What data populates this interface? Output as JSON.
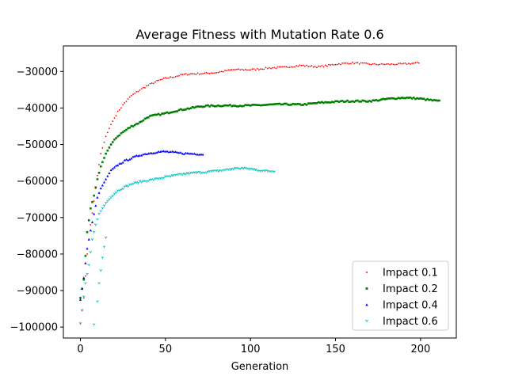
{
  "chart_data": {
    "type": "scatter",
    "title": "Average Fitness with Mutation Rate 0.6",
    "xlabel": "Generation",
    "ylabel": "",
    "xlim": [
      -10,
      221
    ],
    "ylim": [
      -103000,
      -23000
    ],
    "xticks": [
      0,
      50,
      100,
      150,
      200
    ],
    "yticks": [
      -100000,
      -90000,
      -80000,
      -70000,
      -60000,
      -50000,
      -40000,
      -30000
    ],
    "xtick_labels": [
      "0",
      "50",
      "100",
      "150",
      "200"
    ],
    "ytick_labels": [
      "−100000",
      "−90000",
      "−80000",
      "−70000",
      "−60000",
      "−50000",
      "−40000",
      "−30000"
    ],
    "grid": false,
    "legend_position": "lower-right",
    "series": [
      {
        "name": "Impact 0.1",
        "color": "#ff0000",
        "marker": "point",
        "anchors": [
          [
            0,
            -99000
          ],
          [
            2,
            -92000
          ],
          [
            4,
            -80000
          ],
          [
            6,
            -72000
          ],
          [
            8,
            -65500
          ],
          [
            10,
            -58500
          ],
          [
            12,
            -52500
          ],
          [
            15,
            -47800
          ],
          [
            18,
            -44500
          ],
          [
            22,
            -41000
          ],
          [
            26,
            -38500
          ],
          [
            30,
            -36500
          ],
          [
            35,
            -35000
          ],
          [
            40,
            -33800
          ],
          [
            45,
            -32800
          ],
          [
            50,
            -32000
          ],
          [
            55,
            -31500
          ],
          [
            60,
            -30800
          ],
          [
            65,
            -30500
          ],
          [
            70,
            -30500
          ],
          [
            80,
            -30400
          ],
          [
            90,
            -29600
          ],
          [
            100,
            -29400
          ],
          [
            110,
            -29000
          ],
          [
            120,
            -29000
          ],
          [
            130,
            -28400
          ],
          [
            140,
            -28600
          ],
          [
            150,
            -28000
          ],
          [
            160,
            -27800
          ],
          [
            170,
            -28000
          ],
          [
            180,
            -27900
          ],
          [
            190,
            -28000
          ],
          [
            200,
            -27800
          ]
        ],
        "count": 200,
        "noise": 220
      },
      {
        "name": "Impact 0.2",
        "color": "#008000",
        "marker": "square",
        "anchors": [
          [
            0,
            -92000
          ],
          [
            2,
            -87000
          ],
          [
            4,
            -74000
          ],
          [
            6,
            -67500
          ],
          [
            8,
            -64000
          ],
          [
            10,
            -59500
          ],
          [
            12,
            -56000
          ],
          [
            15,
            -52500
          ],
          [
            18,
            -50000
          ],
          [
            21,
            -48000
          ],
          [
            25,
            -46500
          ],
          [
            30,
            -45000
          ],
          [
            35,
            -44000
          ],
          [
            40,
            -42500
          ],
          [
            45,
            -42000
          ],
          [
            50,
            -41500
          ],
          [
            55,
            -40800
          ],
          [
            60,
            -40300
          ],
          [
            70,
            -39600
          ],
          [
            80,
            -39500
          ],
          [
            90,
            -39300
          ],
          [
            100,
            -39200
          ],
          [
            110,
            -39200
          ],
          [
            120,
            -39100
          ],
          [
            130,
            -39000
          ],
          [
            140,
            -38500
          ],
          [
            150,
            -38400
          ],
          [
            160,
            -38200
          ],
          [
            170,
            -38000
          ],
          [
            180,
            -37500
          ],
          [
            190,
            -37300
          ],
          [
            200,
            -37500
          ],
          [
            211,
            -38000
          ]
        ],
        "count": 212,
        "noise": 200
      },
      {
        "name": "Impact 0.4",
        "color": "#0000ff",
        "marker": "triangle",
        "anchors": [
          [
            0,
            -92500
          ],
          [
            2,
            -86500
          ],
          [
            4,
            -78500
          ],
          [
            6,
            -73500
          ],
          [
            8,
            -69000
          ],
          [
            10,
            -64500
          ],
          [
            12,
            -62000
          ],
          [
            15,
            -59500
          ],
          [
            18,
            -57000
          ],
          [
            22,
            -55500
          ],
          [
            26,
            -54500
          ],
          [
            30,
            -53800
          ],
          [
            35,
            -53000
          ],
          [
            40,
            -52500
          ],
          [
            45,
            -52000
          ],
          [
            50,
            -51800
          ],
          [
            55,
            -52000
          ],
          [
            60,
            -52300
          ],
          [
            65,
            -52500
          ],
          [
            72,
            -52800
          ]
        ],
        "count": 73,
        "noise": 220
      },
      {
        "name": "Impact 0.6",
        "color": "#00bfbf",
        "marker": "tri_down",
        "anchors": [
          [
            0,
            -99000
          ],
          [
            3,
            -88000
          ],
          [
            5,
            -83000
          ],
          [
            7,
            -76000
          ],
          [
            9,
            -72000
          ],
          [
            11,
            -69000
          ],
          [
            13,
            -67500
          ],
          [
            15,
            -66000
          ],
          [
            18,
            -64500
          ],
          [
            21,
            -63000
          ],
          [
            25,
            -62000
          ],
          [
            30,
            -61000
          ],
          [
            35,
            -60300
          ],
          [
            40,
            -59800
          ],
          [
            45,
            -59300
          ],
          [
            50,
            -58800
          ],
          [
            55,
            -58500
          ],
          [
            60,
            -58200
          ],
          [
            70,
            -57800
          ],
          [
            80,
            -57200
          ],
          [
            90,
            -56500
          ],
          [
            95,
            -56500
          ],
          [
            100,
            -56800
          ],
          [
            105,
            -57200
          ],
          [
            110,
            -57400
          ],
          [
            114,
            -57300
          ]
        ],
        "count": 115,
        "noise": 230,
        "outliers": [
          [
            8,
            -99300
          ],
          [
            10,
            -93000
          ],
          [
            11,
            -88000
          ],
          [
            12,
            -84500
          ],
          [
            13,
            -81000
          ],
          [
            14,
            -78000
          ],
          [
            15,
            -75500
          ]
        ]
      }
    ]
  }
}
